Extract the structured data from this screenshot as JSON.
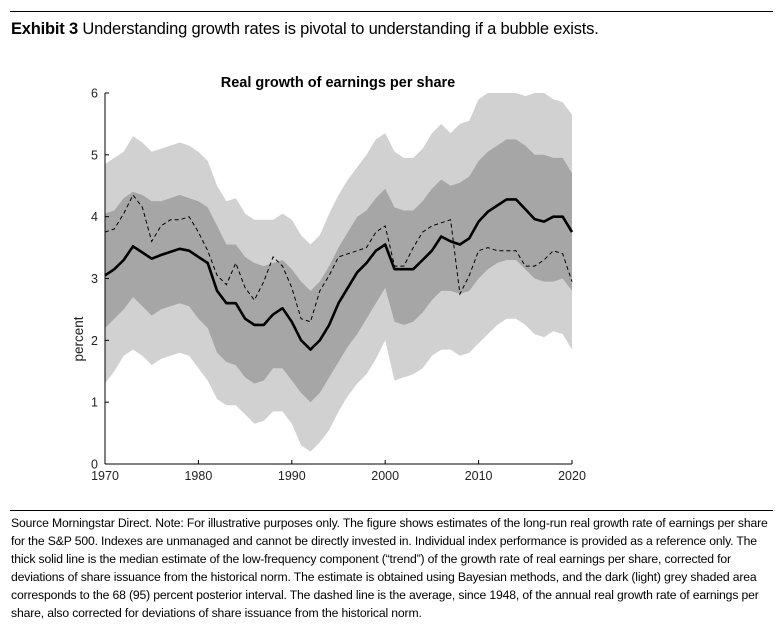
{
  "header": {
    "exhibit_label": "Exhibit 3",
    "exhibit_text": "Understanding growth rates is pivotal to understanding if a bubble exists."
  },
  "chart_data": {
    "type": "area",
    "title": "Real growth of earnings per share",
    "xlabel": "",
    "ylabel": "percent",
    "xlim": [
      1970,
      2020
    ],
    "ylim": [
      0,
      6
    ],
    "xticks": [
      1970,
      1980,
      1990,
      2000,
      2010,
      2020
    ],
    "yticks": [
      0,
      1,
      2,
      3,
      4,
      5,
      6
    ],
    "grid": false,
    "x": [
      1970,
      1971,
      1972,
      1973,
      1974,
      1975,
      1976,
      1977,
      1978,
      1979,
      1980,
      1981,
      1982,
      1983,
      1984,
      1985,
      1986,
      1987,
      1988,
      1989,
      1990,
      1991,
      1992,
      1993,
      1994,
      1995,
      1996,
      1997,
      1998,
      1999,
      2000,
      2001,
      2002,
      2003,
      2004,
      2005,
      2006,
      2007,
      2008,
      2009,
      2010,
      2011,
      2012,
      2013,
      2014,
      2015,
      2016,
      2017,
      2018,
      2019,
      2020
    ],
    "bands": {
      "outer_upper": [
        4.85,
        4.95,
        5.05,
        5.3,
        5.2,
        5.05,
        5.1,
        5.15,
        5.2,
        5.15,
        5.05,
        4.9,
        4.5,
        4.25,
        4.3,
        4.05,
        3.95,
        3.95,
        3.95,
        4.05,
        3.95,
        3.7,
        3.55,
        3.7,
        4.05,
        4.35,
        4.6,
        4.8,
        5.0,
        5.25,
        5.35,
        5.05,
        4.95,
        4.95,
        5.1,
        5.35,
        5.5,
        5.35,
        5.5,
        5.55,
        5.9,
        6.05,
        6.0,
        6.0,
        6.0,
        5.95,
        6.0,
        6.0,
        5.9,
        5.85,
        5.65
      ],
      "inner_upper": [
        4.05,
        4.1,
        4.3,
        4.4,
        4.35,
        4.25,
        4.25,
        4.3,
        4.35,
        4.3,
        4.25,
        4.15,
        3.85,
        3.55,
        3.55,
        3.35,
        3.25,
        3.2,
        3.25,
        3.3,
        3.15,
        2.95,
        2.8,
        2.95,
        3.2,
        3.5,
        3.75,
        4.0,
        4.1,
        4.3,
        4.45,
        4.15,
        4.1,
        4.1,
        4.25,
        4.45,
        4.6,
        4.5,
        4.55,
        4.65,
        4.9,
        5.05,
        5.15,
        5.25,
        5.25,
        5.15,
        5.0,
        5.0,
        4.95,
        4.95,
        4.7
      ],
      "inner_lower": [
        2.2,
        2.35,
        2.5,
        2.7,
        2.55,
        2.4,
        2.5,
        2.55,
        2.6,
        2.55,
        2.35,
        2.2,
        1.8,
        1.65,
        1.6,
        1.4,
        1.3,
        1.35,
        1.55,
        1.55,
        1.35,
        1.15,
        1.0,
        1.15,
        1.4,
        1.65,
        1.9,
        2.1,
        2.35,
        2.6,
        2.85,
        2.3,
        2.25,
        2.3,
        2.45,
        2.65,
        2.8,
        2.8,
        2.75,
        2.8,
        3.0,
        3.15,
        3.25,
        3.3,
        3.3,
        3.15,
        3.0,
        2.95,
        2.95,
        3.0,
        2.8
      ],
      "outer_lower": [
        1.3,
        1.5,
        1.75,
        1.85,
        1.75,
        1.6,
        1.7,
        1.75,
        1.8,
        1.75,
        1.55,
        1.35,
        1.05,
        0.95,
        0.95,
        0.8,
        0.65,
        0.7,
        0.85,
        0.85,
        0.65,
        0.3,
        0.2,
        0.35,
        0.55,
        0.85,
        1.1,
        1.3,
        1.45,
        1.7,
        2.0,
        1.35,
        1.4,
        1.45,
        1.55,
        1.75,
        1.85,
        1.85,
        1.75,
        1.8,
        1.95,
        2.1,
        2.25,
        2.35,
        2.35,
        2.25,
        2.1,
        2.05,
        2.15,
        2.1,
        1.85
      ]
    },
    "series": [
      {
        "style": "thick-solid",
        "values": [
          3.05,
          3.15,
          3.3,
          3.52,
          3.42,
          3.32,
          3.38,
          3.43,
          3.48,
          3.45,
          3.35,
          3.25,
          2.8,
          2.6,
          2.6,
          2.35,
          2.25,
          2.25,
          2.42,
          2.52,
          2.3,
          2.0,
          1.85,
          2.0,
          2.25,
          2.6,
          2.85,
          3.1,
          3.25,
          3.45,
          3.55,
          3.15,
          3.15,
          3.15,
          3.3,
          3.45,
          3.68,
          3.6,
          3.55,
          3.65,
          3.92,
          4.08,
          4.18,
          4.28,
          4.28,
          4.12,
          3.96,
          3.92,
          4.0,
          4.0,
          3.75
        ]
      },
      {
        "style": "dashed",
        "values": [
          3.75,
          3.8,
          4.05,
          4.35,
          4.15,
          3.6,
          3.85,
          3.95,
          3.95,
          4.0,
          3.75,
          3.45,
          3.05,
          2.9,
          3.25,
          2.85,
          2.65,
          2.95,
          3.35,
          3.2,
          2.85,
          2.35,
          2.3,
          2.8,
          3.05,
          3.35,
          3.4,
          3.45,
          3.5,
          3.75,
          3.85,
          3.2,
          3.2,
          3.5,
          3.75,
          3.85,
          3.9,
          3.95,
          2.75,
          3.05,
          3.45,
          3.5,
          3.45,
          3.45,
          3.45,
          3.2,
          3.2,
          3.3,
          3.45,
          3.4,
          2.95
        ]
      }
    ],
    "colors": {
      "outer_band": "#d1d1d1",
      "inner_band": "#a6a6a6",
      "line": "#000000"
    }
  },
  "footer": {
    "note": "Source Morningstar Direct. Note: For illustrative purposes only. The figure shows estimates of the long-run real growth rate of earnings per share for the S&P 500.  Indexes are unmanaged and cannot be directly invested in. Individual index performance is provided as a reference only. The thick solid line is the median estimate of the low-frequency component (“trend”) of the growth rate of real earnings per share, corrected for deviations of share issuance from the historical norm. The estimate is obtained using Bayesian methods, and the dark (light) grey shaded area corresponds to the 68 (95) percent posterior interval. The dashed line is the average, since 1948, of the annual real growth rate of earnings per share, also corrected for deviations of share issuance from the historical norm."
  }
}
